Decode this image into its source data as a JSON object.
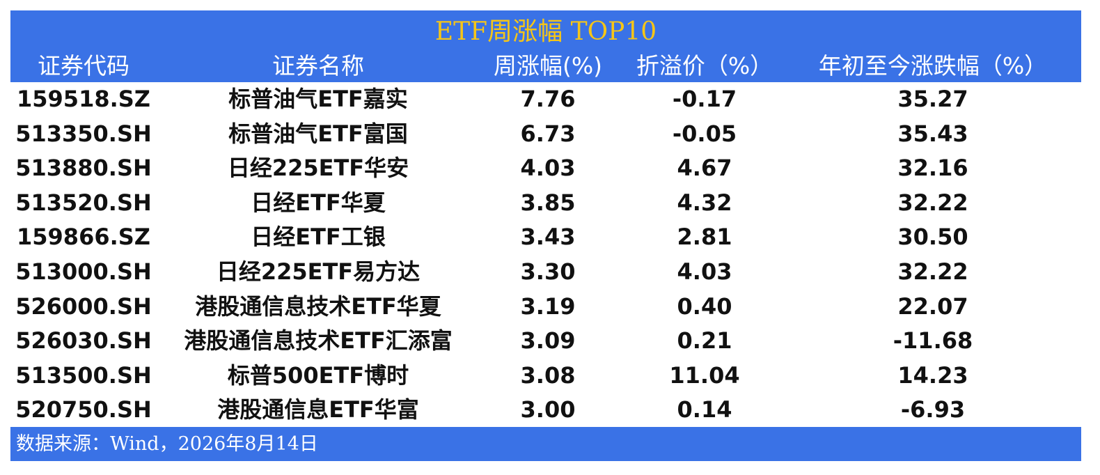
{
  "header": {
    "title": "ETF周涨幅 TOP10"
  },
  "table": {
    "columns": [
      "证券代码",
      "证券名称",
      "周涨幅(%)",
      "折溢价（%）",
      "年初至今涨跌幅（%）"
    ],
    "rows": [
      [
        "159518.SZ",
        "标普油气ETF嘉实",
        "7.76",
        "-0.17",
        "35.27"
      ],
      [
        "513350.SH",
        "标普油气ETF富国",
        "6.73",
        "-0.05",
        "35.43"
      ],
      [
        "513880.SH",
        "日经225ETF华安",
        "4.03",
        "4.67",
        "32.16"
      ],
      [
        "513520.SH",
        "日经ETF华夏",
        "3.85",
        "4.32",
        "32.22"
      ],
      [
        "159866.SZ",
        "日经ETF工银",
        "3.43",
        "2.81",
        "30.50"
      ],
      [
        "513000.SH",
        "日经225ETF易方达",
        "3.30",
        "4.03",
        "32.22"
      ],
      [
        "526000.SH",
        "港股通信息技术ETF华夏",
        "3.19",
        "0.40",
        "22.07"
      ],
      [
        "526030.SH",
        "港股通信息技术ETF汇添富",
        "3.09",
        "0.21",
        "-11.68"
      ],
      [
        "513500.SH",
        "标普500ETF博时",
        "3.08",
        "11.04",
        "14.23"
      ],
      [
        "520750.SH",
        "港股通信息ETF华富",
        "3.00",
        "0.14",
        "-6.93"
      ]
    ]
  },
  "footer": {
    "source": "数据来源：Wind，2026年8月14日"
  }
}
